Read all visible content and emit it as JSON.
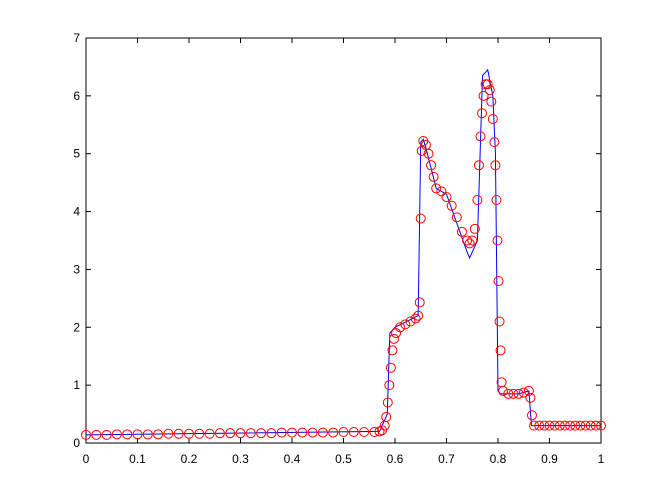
{
  "chart_data": {
    "type": "line",
    "xlim": [
      0,
      1
    ],
    "ylim": [
      0,
      7
    ],
    "xticks": [
      0,
      0.1,
      0.2,
      0.3,
      0.4,
      0.5,
      0.6,
      0.7,
      0.8,
      0.9,
      1
    ],
    "yticks": [
      0,
      1,
      2,
      3,
      4,
      5,
      6,
      7
    ],
    "series": [
      {
        "color": "#0000ff",
        "marker": "none",
        "x": [
          0,
          0.57,
          0.585,
          0.59,
          0.6,
          0.645,
          0.65,
          0.655,
          0.66,
          0.68,
          0.7,
          0.72,
          0.74,
          0.745,
          0.76,
          0.77,
          0.78,
          0.79,
          0.795,
          0.8,
          0.805,
          0.84,
          0.86,
          0.865,
          1
        ],
        "values": [
          0.14,
          0.2,
          0.5,
          1.9,
          2.0,
          2.2,
          5.2,
          5.25,
          5.1,
          4.4,
          4.3,
          3.8,
          3.3,
          3.2,
          3.5,
          6.35,
          6.45,
          6.0,
          5.0,
          0.9,
          0.85,
          0.85,
          0.9,
          0.3,
          0.3
        ]
      },
      {
        "color": "#ff0000",
        "marker": "circle",
        "x": [
          0,
          0.02,
          0.04,
          0.06,
          0.08,
          0.1,
          0.12,
          0.14,
          0.16,
          0.18,
          0.2,
          0.22,
          0.24,
          0.26,
          0.28,
          0.3,
          0.32,
          0.34,
          0.36,
          0.38,
          0.4,
          0.42,
          0.44,
          0.46,
          0.48,
          0.5,
          0.52,
          0.54,
          0.56,
          0.57,
          0.575,
          0.58,
          0.583,
          0.586,
          0.589,
          0.592,
          0.595,
          0.598,
          0.602,
          0.61,
          0.62,
          0.63,
          0.64,
          0.645,
          0.648,
          0.65,
          0.652,
          0.655,
          0.66,
          0.665,
          0.67,
          0.675,
          0.68,
          0.69,
          0.7,
          0.71,
          0.72,
          0.73,
          0.74,
          0.745,
          0.75,
          0.755,
          0.76,
          0.763,
          0.766,
          0.769,
          0.772,
          0.776,
          0.78,
          0.784,
          0.787,
          0.79,
          0.793,
          0.795,
          0.797,
          0.799,
          0.801,
          0.803,
          0.805,
          0.807,
          0.81,
          0.82,
          0.83,
          0.84,
          0.85,
          0.86,
          0.863,
          0.866,
          0.87,
          0.88,
          0.89,
          0.9,
          0.91,
          0.92,
          0.93,
          0.94,
          0.95,
          0.96,
          0.97,
          0.98,
          0.99,
          1
        ],
        "values": [
          0.14,
          0.14,
          0.14,
          0.15,
          0.15,
          0.15,
          0.15,
          0.15,
          0.16,
          0.16,
          0.16,
          0.16,
          0.16,
          0.17,
          0.17,
          0.17,
          0.17,
          0.17,
          0.17,
          0.18,
          0.18,
          0.18,
          0.18,
          0.18,
          0.18,
          0.19,
          0.19,
          0.19,
          0.19,
          0.2,
          0.22,
          0.3,
          0.45,
          0.7,
          1.0,
          1.3,
          1.6,
          1.8,
          1.9,
          2.0,
          2.05,
          2.1,
          2.15,
          2.2,
          2.43,
          3.88,
          5.05,
          5.22,
          5.15,
          5.0,
          4.8,
          4.6,
          4.4,
          4.35,
          4.25,
          4.1,
          3.9,
          3.65,
          3.5,
          3.45,
          3.5,
          3.7,
          4.2,
          4.8,
          5.3,
          5.7,
          6.0,
          6.2,
          6.2,
          6.1,
          5.9,
          5.6,
          5.2,
          4.8,
          4.2,
          3.5,
          2.8,
          2.1,
          1.6,
          1.05,
          0.9,
          0.85,
          0.85,
          0.85,
          0.87,
          0.9,
          0.78,
          0.48,
          0.3,
          0.3,
          0.3,
          0.3,
          0.3,
          0.3,
          0.3,
          0.3,
          0.3,
          0.3,
          0.3,
          0.3,
          0.3,
          0.3
        ]
      }
    ]
  }
}
